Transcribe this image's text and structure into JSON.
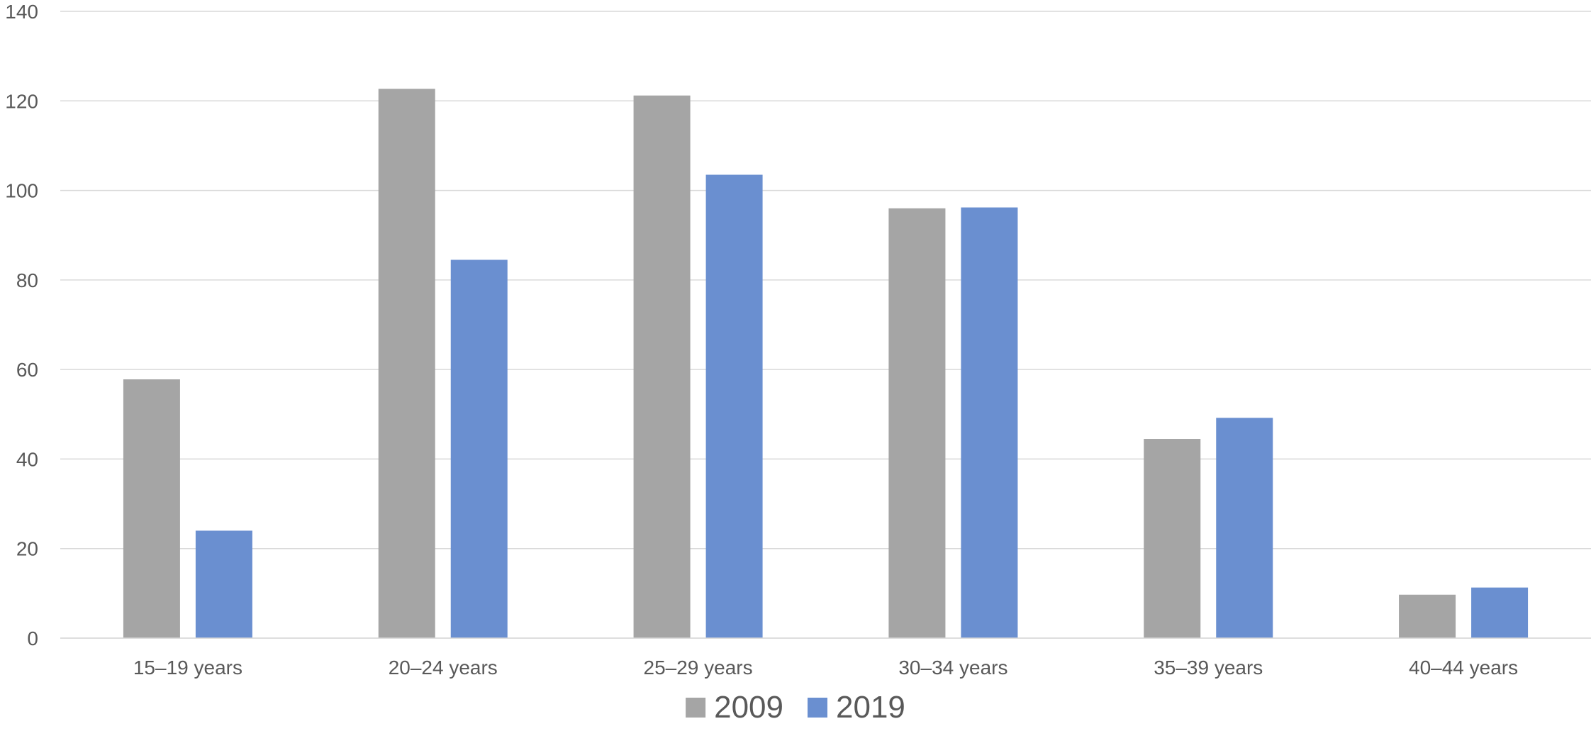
{
  "chart_data": {
    "type": "bar",
    "title": "",
    "xlabel": "",
    "ylabel": "",
    "categories": [
      "15–19 years",
      "20–24 years",
      "25–29 years",
      "30–34 years",
      "35–39 years",
      "40–44 years"
    ],
    "series": [
      {
        "name": "2009",
        "color": "#a5a5a5",
        "values": [
          57.8,
          122.7,
          121.2,
          96.0,
          44.5,
          9.7
        ]
      },
      {
        "name": "2019",
        "color": "#6a8fd0",
        "values": [
          24.0,
          84.5,
          103.5,
          96.2,
          49.2,
          11.3
        ]
      }
    ],
    "ylim": [
      0,
      140
    ],
    "yticks": [
      "0",
      "20",
      "40",
      "60",
      "80",
      "100",
      "120",
      "140"
    ],
    "grid": true,
    "legend": "bottom-center"
  }
}
